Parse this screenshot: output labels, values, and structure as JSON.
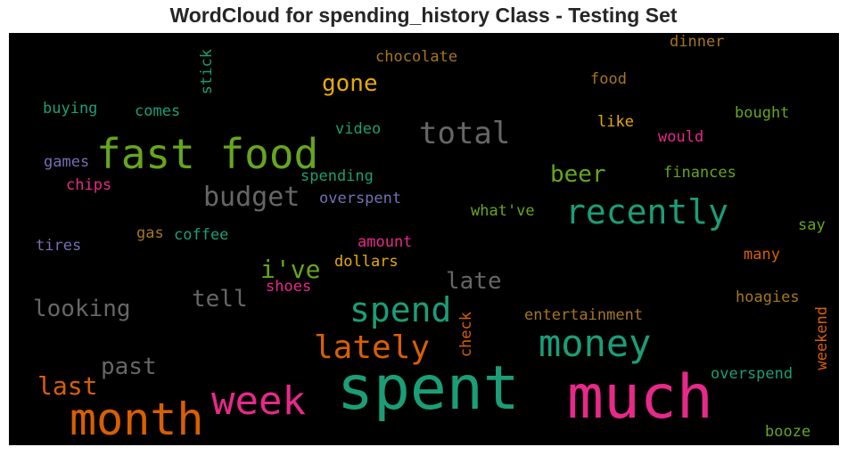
{
  "title": "WordCloud for spending_history Class - Testing Set",
  "colors": {
    "teal": "#1b9e77",
    "orange": "#d95f02",
    "purple": "#7570b3",
    "pink": "#e7298a",
    "green": "#66a61e",
    "gold": "#e6ab02",
    "brown": "#a6761d",
    "gray": "#666666"
  },
  "words": {
    "spent": "spent",
    "much": "much",
    "month": "month",
    "fast_food": "fast food",
    "week": "week",
    "money": "money",
    "recently": "recently",
    "spend": "spend",
    "lately": "lately",
    "total": "total",
    "budget": "budget",
    "last": "last",
    "looking": "looking",
    "past": "past",
    "tell": "tell",
    "ive": "i've",
    "late": "late",
    "beer": "beer",
    "gone": "gone",
    "chocolate": "chocolate",
    "dinner": "dinner",
    "food": "food",
    "stick": "stick",
    "buying": "buying",
    "comes": "comes",
    "video": "video",
    "like": "like",
    "bought": "bought",
    "would": "would",
    "games": "games",
    "spending": "spending",
    "finances": "finances",
    "chips": "chips",
    "overspent": "overspent",
    "whatve": "what've",
    "say": "say",
    "gas": "gas",
    "coffee": "coffee",
    "tires": "tires",
    "amount": "amount",
    "many": "many",
    "dollars": "dollars",
    "shoes": "shoes",
    "hoagies": "hoagies",
    "check": "check",
    "entertainment": "entertainment",
    "weekend": "weekend",
    "overspend": "overspend",
    "booze": "booze"
  }
}
